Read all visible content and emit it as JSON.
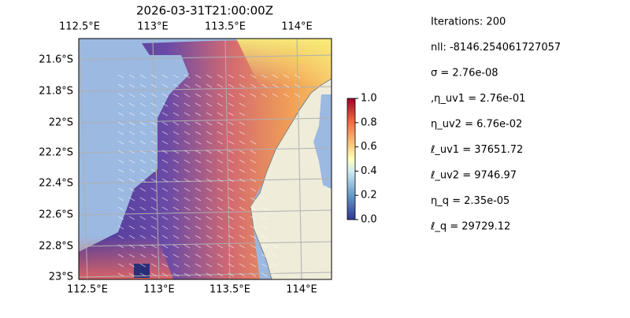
{
  "title": "2026-03-31T21:00:00Z",
  "map": {
    "lon_labels_top": [
      "112.5°E",
      "113°E",
      "113.5°E",
      "114°E"
    ],
    "lon_labels_bottom": [
      "112.5°E",
      "113°E",
      "113.5°E",
      "114°E"
    ],
    "lat_labels": [
      "21.6°S",
      "21.8°S",
      "22°S",
      "22.2°S",
      "22.4°S",
      "22.6°S",
      "22.8°S",
      "23°S"
    ]
  },
  "colorbar": {
    "lim": [
      0,
      1
    ],
    "ticks": [
      {
        "value": 0,
        "label": "0.0"
      },
      {
        "value": 0.2,
        "label": "0.2"
      },
      {
        "value": 0.4,
        "label": "0.4"
      },
      {
        "value": 0.6,
        "label": "0.6"
      },
      {
        "value": 0.8,
        "label": "0.8"
      },
      {
        "value": 1,
        "label": "1.0"
      }
    ]
  },
  "stats": [
    "Iterations: 200",
    "nll: -8146.254061727057",
    "σ = 2.76e-08",
    ",η_uv1 = 2.76e-01",
    "η_uv2 = 6.76e-02",
    "ℓ_uv1 = 37651.72",
    "ℓ_uv2 = 9746.97",
    "η_q = 2.35e-05",
    "ℓ_q = 29729.12"
  ]
}
